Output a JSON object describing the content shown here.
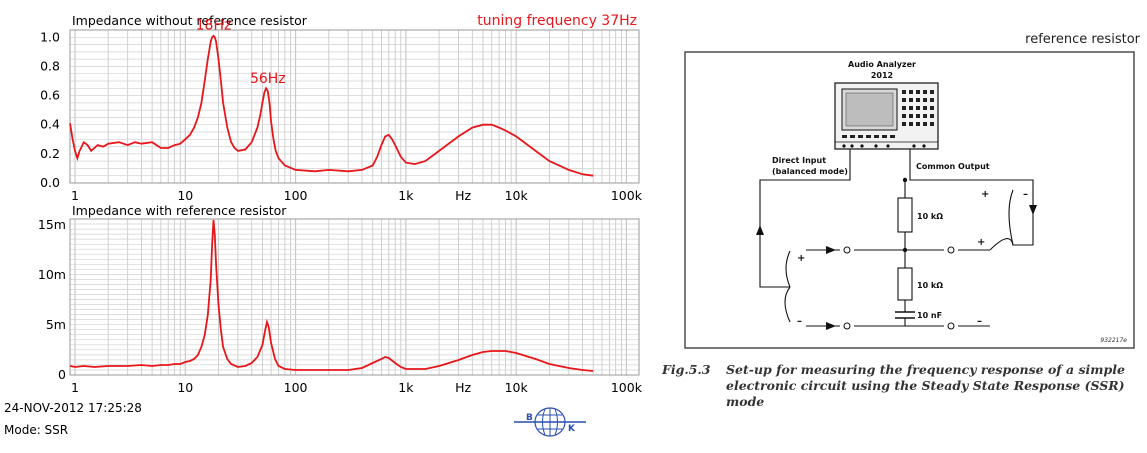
{
  "header": {
    "tuning_note": "tuning frequency 37Hz",
    "diagram_label": "reference resistor"
  },
  "footer": {
    "timestamp": "24-NOV-2012 17:25:28",
    "mode": "Mode: SSR",
    "logo_letters": [
      "B",
      "K"
    ]
  },
  "colors": {
    "trace": "#e8161a",
    "annotation": "#e8161a",
    "grid": "#c0c0c0",
    "axis_text": "#000000"
  },
  "chart_data": [
    {
      "type": "line",
      "title": "Impedance without reference resistor",
      "x_scale": "log",
      "xlim": [
        0.9,
        130000
      ],
      "ylim": [
        0,
        1.05
      ],
      "x_ticks": [
        {
          "value": 1,
          "label": "1"
        },
        {
          "value": 10,
          "label": "10"
        },
        {
          "value": 100,
          "label": "100"
        },
        {
          "value": 1000,
          "label": "1k"
        },
        {
          "value": 3300,
          "label": "Hz"
        },
        {
          "value": 10000,
          "label": "10k"
        },
        {
          "value": 100000,
          "label": "100k"
        }
      ],
      "y_ticks": [
        {
          "value": 0,
          "label": "0.0"
        },
        {
          "value": 0.2,
          "label": "0.2"
        },
        {
          "value": 0.4,
          "label": "0.4"
        },
        {
          "value": 0.6,
          "label": "0.6"
        },
        {
          "value": 0.8,
          "label": "0.8"
        },
        {
          "value": 1.0,
          "label": "1.0"
        }
      ],
      "annotations": [
        {
          "text": "18Hz",
          "x": 18,
          "y": 1.0
        },
        {
          "text": "56Hz",
          "x": 56,
          "y": 0.63
        }
      ],
      "grid": true,
      "series": [
        {
          "x": [
            0.9,
            0.95,
            1.0,
            1.05,
            1.1,
            1.2,
            1.3,
            1.4,
            1.6,
            1.8,
            2,
            2.5,
            3,
            3.5,
            4,
            5,
            6,
            7,
            8,
            9,
            10,
            11,
            12,
            13,
            14,
            15,
            16,
            17,
            17.5,
            18,
            18.5,
            19,
            20,
            21,
            22,
            24,
            26,
            28,
            30,
            35,
            40,
            45,
            48,
            50,
            52,
            54,
            56,
            58,
            60,
            63,
            66,
            70,
            80,
            100,
            150,
            200,
            300,
            400,
            500,
            550,
            600,
            650,
            700,
            750,
            800,
            900,
            1000,
            1200,
            1500,
            2000,
            3000,
            4000,
            5000,
            6000,
            7000,
            8000,
            10000,
            15000,
            20000,
            30000,
            40000,
            50000
          ],
          "y": [
            0.41,
            0.3,
            0.22,
            0.17,
            0.22,
            0.28,
            0.26,
            0.22,
            0.26,
            0.25,
            0.27,
            0.28,
            0.26,
            0.28,
            0.27,
            0.28,
            0.24,
            0.24,
            0.26,
            0.27,
            0.3,
            0.33,
            0.38,
            0.45,
            0.55,
            0.7,
            0.85,
            0.97,
            1.0,
            1.01,
            1.0,
            0.97,
            0.85,
            0.7,
            0.55,
            0.38,
            0.28,
            0.24,
            0.22,
            0.23,
            0.28,
            0.38,
            0.47,
            0.55,
            0.62,
            0.65,
            0.63,
            0.55,
            0.42,
            0.3,
            0.22,
            0.17,
            0.12,
            0.09,
            0.08,
            0.09,
            0.08,
            0.09,
            0.12,
            0.18,
            0.26,
            0.32,
            0.33,
            0.3,
            0.26,
            0.18,
            0.14,
            0.13,
            0.15,
            0.22,
            0.32,
            0.38,
            0.4,
            0.4,
            0.38,
            0.36,
            0.32,
            0.22,
            0.15,
            0.09,
            0.06,
            0.05
          ]
        }
      ]
    },
    {
      "type": "line",
      "title": "Impedance with reference resistor",
      "x_scale": "log",
      "xlim": [
        0.9,
        130000
      ],
      "ylim": [
        0,
        0.0156
      ],
      "x_ticks": [
        {
          "value": 1,
          "label": "1"
        },
        {
          "value": 10,
          "label": "10"
        },
        {
          "value": 100,
          "label": "100"
        },
        {
          "value": 1000,
          "label": "1k"
        },
        {
          "value": 3300,
          "label": "Hz"
        },
        {
          "value": 10000,
          "label": "10k"
        },
        {
          "value": 100000,
          "label": "100k"
        }
      ],
      "y_ticks": [
        {
          "value": 0,
          "label": "0"
        },
        {
          "value": 0.005,
          "label": "5m"
        },
        {
          "value": 0.01,
          "label": "10m"
        },
        {
          "value": 0.015,
          "label": "15m"
        }
      ],
      "grid": true,
      "series": [
        {
          "x": [
            0.9,
            1.0,
            1.2,
            1.5,
            2,
            3,
            4,
            5,
            6,
            7,
            8,
            9,
            10,
            11,
            12,
            13,
            14,
            15,
            16,
            17,
            17.5,
            18,
            18.5,
            19,
            20,
            21,
            22,
            24,
            26,
            30,
            35,
            40,
            45,
            50,
            53,
            55,
            57,
            60,
            65,
            70,
            80,
            100,
            200,
            300,
            400,
            500,
            600,
            650,
            700,
            800,
            900,
            1000,
            1500,
            2000,
            3000,
            4000,
            5000,
            6000,
            8000,
            10000,
            15000,
            20000,
            30000,
            40000,
            50000
          ],
          "y": [
            0.0009,
            0.0008,
            0.0009,
            0.0008,
            0.0009,
            0.0009,
            0.001,
            0.0009,
            0.001,
            0.001,
            0.0011,
            0.0011,
            0.0013,
            0.0014,
            0.0016,
            0.002,
            0.0028,
            0.004,
            0.006,
            0.0095,
            0.013,
            0.0155,
            0.014,
            0.011,
            0.007,
            0.0045,
            0.0028,
            0.0016,
            0.0011,
            0.0008,
            0.0009,
            0.0012,
            0.0018,
            0.003,
            0.0045,
            0.0053,
            0.0048,
            0.0032,
            0.0016,
            0.0009,
            0.0006,
            0.0005,
            0.0005,
            0.0005,
            0.0007,
            0.0012,
            0.0016,
            0.0018,
            0.0017,
            0.0012,
            0.0008,
            0.0006,
            0.0006,
            0.0009,
            0.0015,
            0.002,
            0.0023,
            0.0024,
            0.0024,
            0.0022,
            0.0016,
            0.0011,
            0.0007,
            0.0005,
            0.0004
          ]
        }
      ]
    }
  ],
  "diagram": {
    "analyzer_title": "Audio Analyzer",
    "analyzer_model": "2012",
    "direct_input_label": "Direct Input",
    "direct_input_sub": "(balanced mode)",
    "common_output_label": "Common Output",
    "resistor_top": "10 kΩ",
    "resistor_bottom": "10 kΩ",
    "capacitor": "10 nF",
    "figure_code": "932217e",
    "caption_number": "Fig.5.3",
    "caption_text": "Set-up for measuring the frequency response of a simple electronic circuit using the Steady State Response (SSR) mode"
  }
}
